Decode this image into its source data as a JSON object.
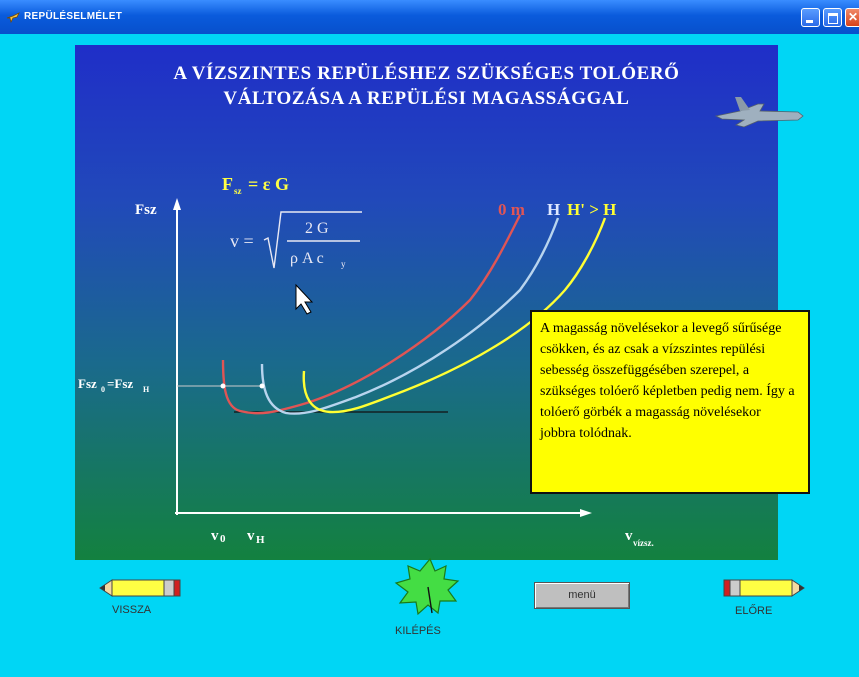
{
  "window": {
    "title": "REPÜLÉSELMÉLET"
  },
  "slide": {
    "title_line1": "A VÍZSZINTES REPÜLÉSHEZ SZÜKSÉGES TOLÓERŐ",
    "title_line2": "VÁLTOZÁSA A REPÜLÉSI MAGASSÁGGAL",
    "formula1": "Fsz = ε G",
    "formula2": "v = √(2G / ρ A cy)",
    "info_text": "A magasság növelésekor a levegő sűrűsége csökken, és az csak a vízszintes repülési sebesség összefüggésében szerepel, a szükséges tolóerő képletben pedig nem. Így a tolóerő görbék a magasság növelésekor jobbra tolódnak."
  },
  "chart_data": {
    "type": "line",
    "ylabel": "Fsz",
    "xlabel": "v vízsz.",
    "y_tick_label": "Fsz0=FszH",
    "x_tick_labels": [
      "v0",
      "vH"
    ],
    "series": [
      {
        "name": "0 m",
        "color": "#e05555"
      },
      {
        "name": "H",
        "color": "#b8d4ee"
      },
      {
        "name": "H' > H",
        "color": "#ffff33"
      }
    ],
    "grid": false
  },
  "nav": {
    "back_label": "VISSZA",
    "exit_label": "KILÉPÉS",
    "menu_label": "menü",
    "forward_label": "ELŐRE"
  },
  "colors": {
    "background": "#00d6f5",
    "info_box": "#ffff00",
    "formula": "#ffff44"
  },
  "icons": [
    "app-icon",
    "jet-icon",
    "arrow-cursor-icon",
    "pencil-back-icon",
    "leaf-exit-icon",
    "pencil-forward-icon"
  ]
}
